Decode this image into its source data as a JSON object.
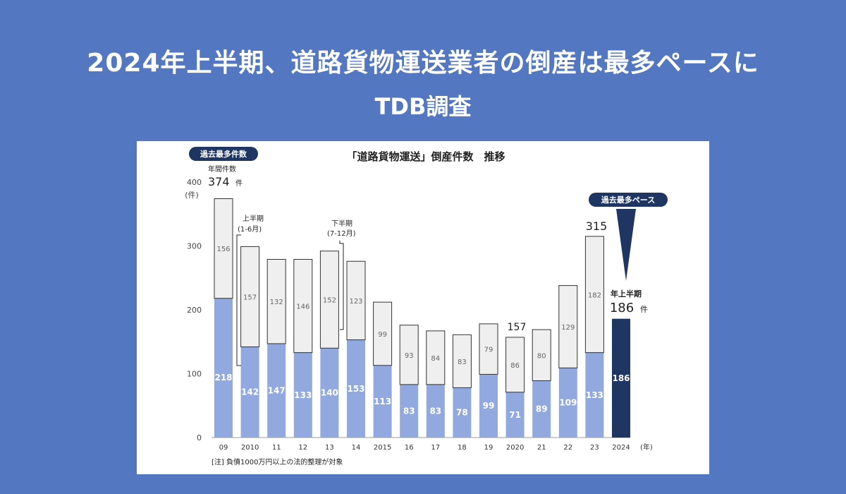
{
  "header": {
    "line1": "2024年上半期、道路貨物運送業者の倒産は最多ペースに",
    "line2": "TDB調査"
  },
  "chart_data": {
    "type": "bar",
    "title": "「道路貨物運送」倒産件数　推移",
    "unit_label": "(件)",
    "x_unit_label": "(年)",
    "ylim": [
      0,
      400
    ],
    "yticks": [
      0,
      100,
      200,
      300,
      400
    ],
    "categories": [
      "09",
      "2010",
      "11",
      "12",
      "13",
      "14",
      "2015",
      "16",
      "17",
      "18",
      "19",
      "2020",
      "21",
      "22",
      "23",
      "2024"
    ],
    "series": [
      {
        "name": "上半期(1-6月)",
        "values": [
          218,
          142,
          147,
          133,
          140,
          153,
          113,
          83,
          83,
          78,
          99,
          71,
          89,
          109,
          133,
          186
        ]
      },
      {
        "name": "下半期(7-12月)",
        "values": [
          156,
          157,
          132,
          146,
          152,
          123,
          99,
          93,
          84,
          83,
          79,
          86,
          80,
          129,
          182,
          null
        ]
      }
    ],
    "colors": {
      "lower": "#91a9de",
      "upper": "#efefef",
      "highlight": "#1f3662",
      "badge": "#1f3662"
    },
    "annotations": {
      "max_badge": "過去最多件数",
      "annual_label": "年間件数",
      "max_value": "374",
      "ken": "件",
      "first_half_label": "上半期",
      "first_half_range": "(1-6月)",
      "second_half_label": "下半期",
      "second_half_range": "(7-12月)",
      "pace_badge": "過去最多ペース",
      "total_2020": "157",
      "total_2023": "315",
      "h1_2024_label": "年上半期",
      "h1_2024_value": "186",
      "note": "[注] 負債1000万円以上の法的整理が対象"
    }
  }
}
